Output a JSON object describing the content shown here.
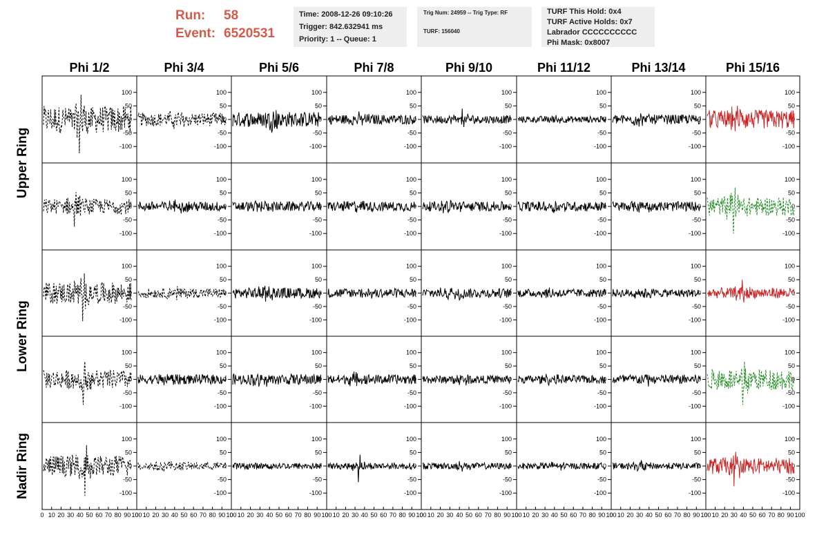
{
  "header": {
    "run_label": "Run:",
    "run_value": "58",
    "event_label": "Event:",
    "event_value": "6520531",
    "time": "Time: 2008-12-26 09:10:26",
    "trigger": "Trigger: 842.632941 ms",
    "priority": "Priority: 1 -- Queue: 1",
    "trig_num": "Trig Num: 24959 -- Trig Type: RF",
    "turf": "TURF: 156040",
    "turf_hold": "TURF This Hold: 0x4",
    "turf_active": "TURF Active Holds: 0x7",
    "labrador": "Labrador CCCCCCCCCC",
    "phi_mask": "Phi Mask: 0x8007"
  },
  "colors": {
    "header_text": "#d45a4a",
    "trace_black": "#000000",
    "trace_red": "#cc2222",
    "trace_green": "#1f8a1f"
  },
  "chart_data": {
    "type": "line",
    "columns": [
      "Phi 1/2",
      "Phi 3/4",
      "Phi 5/6",
      "Phi 7/8",
      "Phi 9/10",
      "Phi 11/12",
      "Phi 13/14",
      "Phi 15/16"
    ],
    "rows": [
      "Upper Ring",
      "Upper Ring",
      "Lower Ring",
      "Lower Ring",
      "Nadir Ring"
    ],
    "row_titles": [
      "Upper Ring",
      "Lower Ring",
      "Nadir Ring"
    ],
    "xlim": [
      0,
      100
    ],
    "ylim": [
      -125,
      125
    ],
    "y_ticks": [
      -100,
      -50,
      0,
      50,
      100
    ],
    "x_ticks": [
      0,
      10,
      20,
      30,
      40,
      50,
      60,
      70,
      80,
      90,
      100
    ],
    "x_tick_labels": [
      "0",
      "10",
      "20",
      "30",
      "40",
      "50",
      "60",
      "70",
      "80",
      "90",
      "100"
    ],
    "trace_styles": [
      [
        "dashed",
        "dashed",
        "solid",
        "solid",
        "solid",
        "solid",
        "solid",
        "red"
      ],
      [
        "dashed",
        "solid",
        "solid",
        "solid",
        "solid",
        "solid",
        "solid",
        "green-dashed"
      ],
      [
        "dashed",
        "dashed",
        "solid",
        "solid",
        "solid",
        "solid",
        "solid",
        "red"
      ],
      [
        "dashed",
        "solid",
        "solid",
        "solid",
        "solid",
        "solid",
        "solid",
        "green-dashed"
      ],
      [
        "dashed",
        "dashed",
        "solid",
        "solid",
        "solid",
        "solid",
        "solid",
        "red"
      ]
    ],
    "amplitudes": [
      [
        50,
        25,
        28,
        18,
        15,
        12,
        18,
        35
      ],
      [
        28,
        18,
        18,
        18,
        18,
        18,
        18,
        35
      ],
      [
        40,
        18,
        20,
        18,
        18,
        15,
        15,
        20
      ],
      [
        35,
        18,
        20,
        18,
        15,
        15,
        18,
        40
      ],
      [
        40,
        15,
        12,
        12,
        12,
        12,
        12,
        30
      ]
    ],
    "peaks": [
      [
        -130,
        0,
        0,
        0,
        40,
        0,
        0,
        0
      ],
      [
        -75,
        0,
        0,
        0,
        0,
        0,
        0,
        -100
      ],
      [
        -105,
        0,
        0,
        0,
        0,
        0,
        0,
        50
      ],
      [
        -95,
        0,
        0,
        0,
        0,
        0,
        0,
        -95
      ],
      [
        -110,
        0,
        0,
        -60,
        0,
        0,
        0,
        -75
      ]
    ]
  }
}
